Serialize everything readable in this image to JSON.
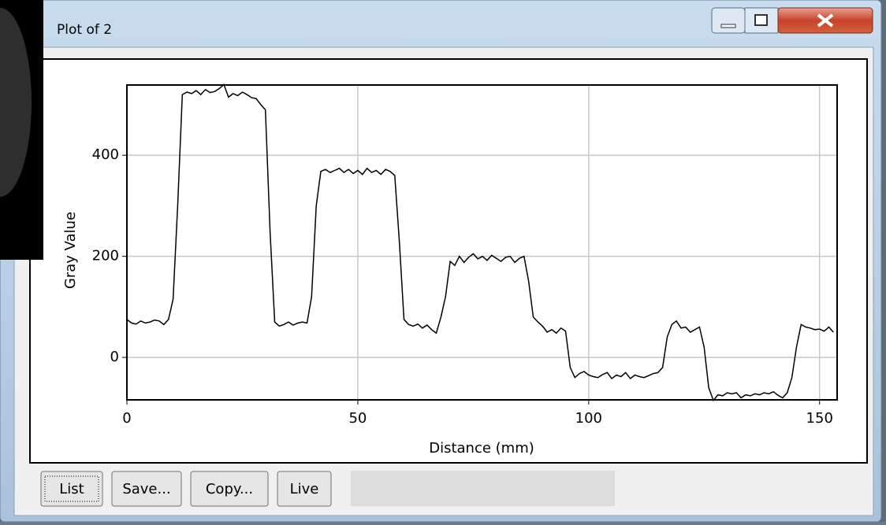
{
  "window": {
    "title": "Plot of 2"
  },
  "buttons": [
    "List",
    "Save...",
    "Copy...",
    "Live"
  ],
  "chart_data": {
    "type": "line",
    "x_label": "Distance (mm)",
    "y_label": "Gray Value",
    "xlim": [
      0,
      153.8
    ],
    "ylim": [
      -84,
      539
    ],
    "xticks": [
      0,
      50,
      100,
      150
    ],
    "yticks": [
      0,
      200,
      400
    ],
    "grid": true,
    "series": [
      {
        "color": "#000000",
        "x": [
          0,
          1,
          2,
          3,
          4,
          5,
          6,
          7,
          8,
          9,
          10,
          11,
          12,
          13,
          14,
          15,
          16,
          17,
          18,
          19,
          20,
          21,
          22,
          23,
          24,
          25,
          26,
          27,
          28,
          29,
          30,
          31,
          32,
          33,
          34,
          35,
          36,
          37,
          38,
          39,
          40,
          41,
          42,
          43,
          44,
          45,
          46,
          47,
          48,
          49,
          50,
          51,
          52,
          53,
          54,
          55,
          56,
          57,
          58,
          59,
          60,
          61,
          62,
          63,
          64,
          65,
          66,
          67,
          68,
          69,
          70,
          71,
          72,
          73,
          74,
          75,
          76,
          77,
          78,
          79,
          80,
          81,
          82,
          83,
          84,
          85,
          86,
          87,
          88,
          89,
          90,
          91,
          92,
          93,
          94,
          95,
          96,
          97,
          98,
          99,
          100,
          101,
          102,
          103,
          104,
          105,
          106,
          107,
          108,
          109,
          110,
          111,
          112,
          113,
          114,
          115,
          116,
          117,
          118,
          119,
          120,
          121,
          122,
          123,
          124,
          125,
          126,
          127,
          128,
          129,
          130,
          131,
          132,
          133,
          134,
          135,
          136,
          137,
          138,
          139,
          140,
          141,
          142,
          143,
          144,
          145,
          146,
          147,
          148,
          149,
          150,
          151,
          152,
          153
        ],
        "values": [
          75,
          68,
          66,
          72,
          68,
          70,
          74,
          72,
          65,
          75,
          115,
          300,
          520,
          525,
          522,
          528,
          520,
          530,
          524,
          526,
          532,
          540,
          515,
          522,
          518,
          525,
          520,
          514,
          512,
          500,
          490,
          250,
          70,
          62,
          65,
          70,
          64,
          68,
          70,
          68,
          120,
          300,
          368,
          372,
          366,
          370,
          374,
          366,
          372,
          364,
          370,
          362,
          374,
          366,
          370,
          362,
          372,
          368,
          360,
          230,
          75,
          65,
          62,
          66,
          58,
          64,
          55,
          48,
          80,
          120,
          190,
          182,
          200,
          188,
          198,
          205,
          195,
          200,
          192,
          202,
          196,
          190,
          198,
          200,
          188,
          196,
          200,
          150,
          80,
          70,
          62,
          50,
          55,
          48,
          58,
          52,
          -20,
          -40,
          -32,
          -28,
          -35,
          -38,
          -40,
          -34,
          -30,
          -42,
          -35,
          -38,
          -30,
          -42,
          -35,
          -38,
          -40,
          -36,
          -32,
          -30,
          -20,
          40,
          65,
          72,
          58,
          60,
          50,
          55,
          60,
          20,
          -60,
          -85,
          -74,
          -76,
          -70,
          -72,
          -70,
          -80,
          -74,
          -76,
          -72,
          -74,
          -70,
          -72,
          -68,
          -75,
          -80,
          -70,
          -40,
          20,
          65,
          60,
          58,
          55,
          56,
          52,
          60,
          50
        ]
      }
    ]
  }
}
